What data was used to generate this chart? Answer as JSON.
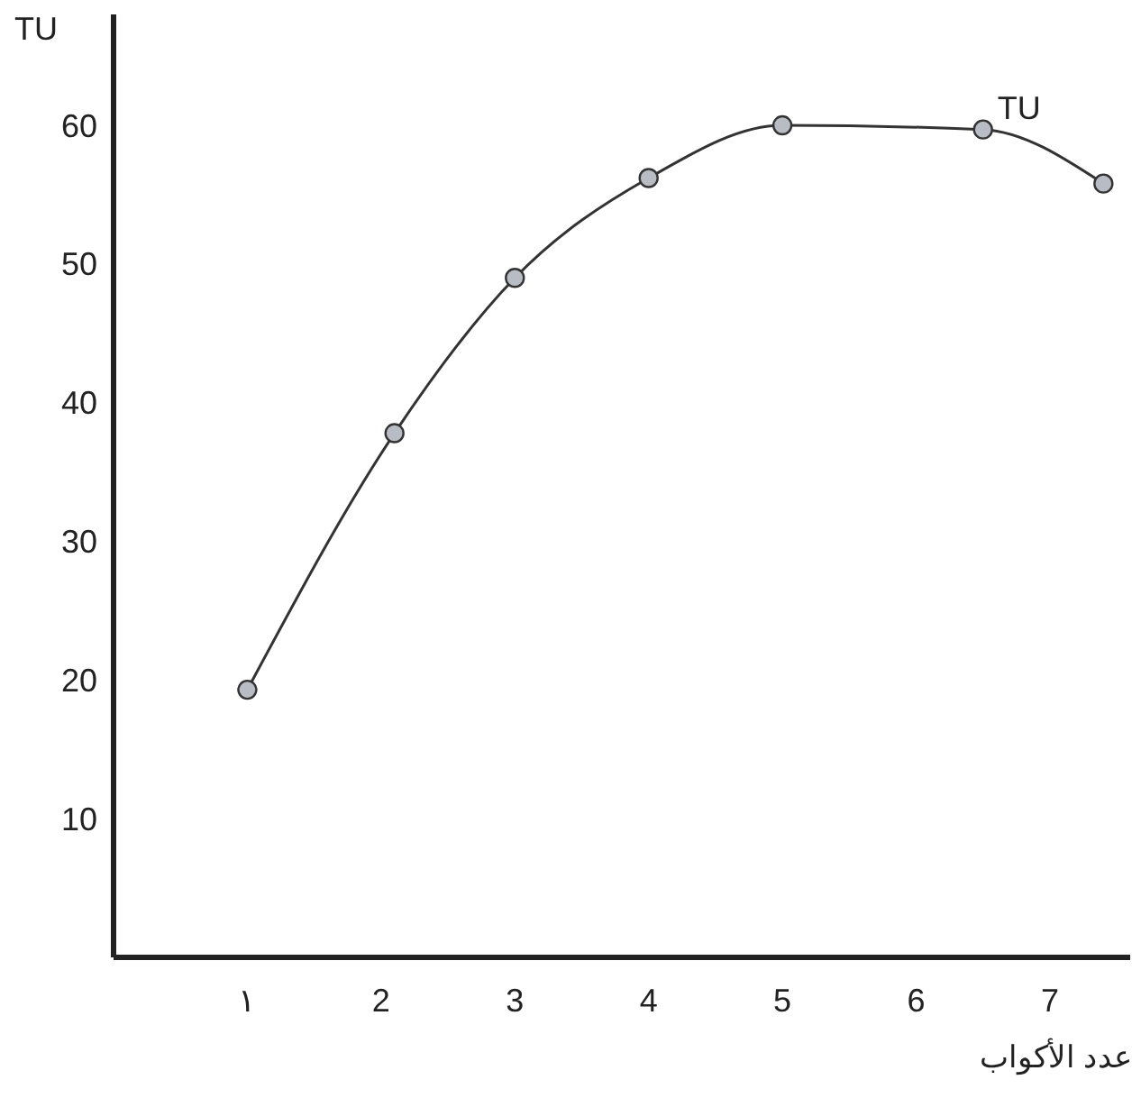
{
  "chart_data": {
    "type": "line",
    "ylabel": "TU",
    "xlabel": "عدد الأكواب",
    "xlim": [
      0,
      7.6
    ],
    "ylim": [
      0,
      68
    ],
    "xticks": [
      {
        "value": 1,
        "label": "١"
      },
      2,
      3,
      4,
      5,
      6,
      7
    ],
    "yticks": [
      10,
      20,
      30,
      40,
      50,
      60
    ],
    "marker": "circle",
    "grid": false,
    "series": [
      {
        "name": "TU",
        "color": "#333333",
        "x": [
          1,
          2.1,
          3,
          4,
          5,
          6.5,
          7.4
        ],
        "values": [
          19.3,
          37.8,
          49,
          56.2,
          60,
          59.7,
          55.8
        ]
      }
    ]
  }
}
